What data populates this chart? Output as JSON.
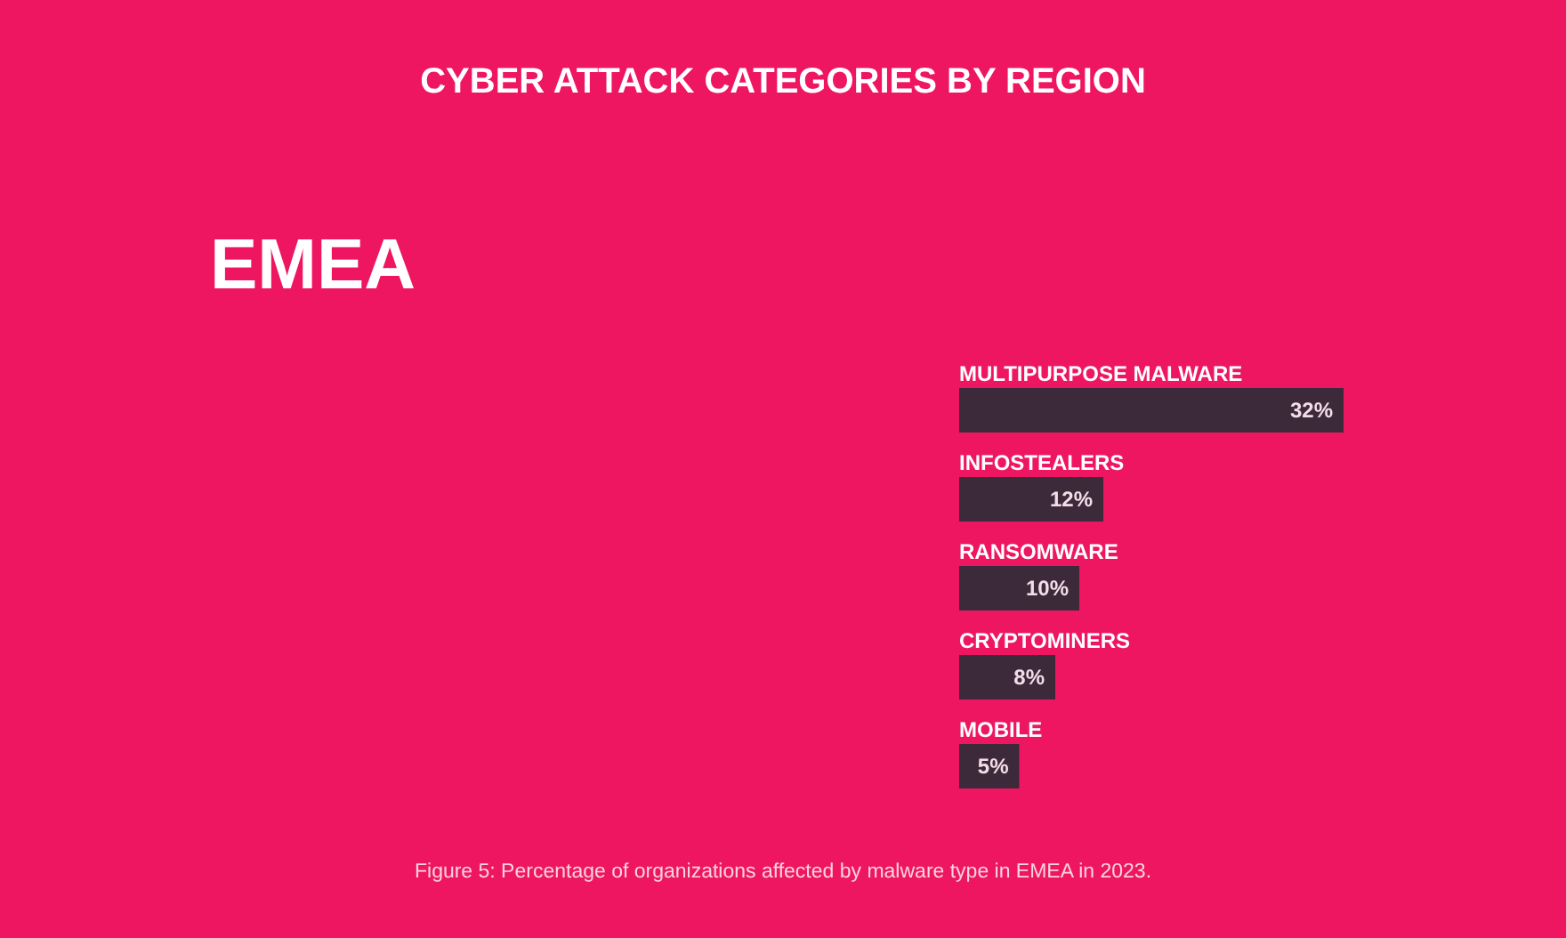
{
  "chart_data": {
    "type": "bar",
    "orientation": "horizontal",
    "title": "CYBER ATTACK CATEGORIES BY REGION",
    "subtitle": "EMEA",
    "categories": [
      "MULTIPURPOSE MALWARE",
      "INFOSTEALERS",
      "RANSOMWARE",
      "CRYPTOMINERS",
      "MOBILE"
    ],
    "values": [
      32,
      12,
      10,
      8,
      5
    ],
    "value_labels": [
      "32%",
      "12%",
      "10%",
      "8%",
      "5%"
    ],
    "color": "#3c2a3b",
    "annotations": [
      "Figure 5: Percentage of organizations affected by malware type in EMEA in 2023."
    ]
  }
}
